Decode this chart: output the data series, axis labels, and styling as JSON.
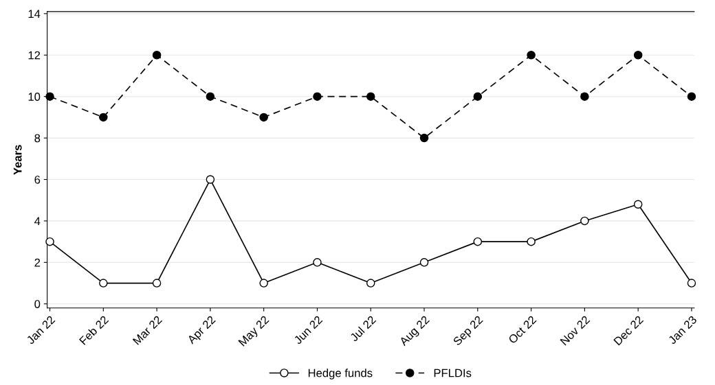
{
  "chart_data": {
    "type": "line",
    "ylabel": "Years",
    "categories": [
      "Jan 22",
      "Feb 22",
      "Mar 22",
      "Apr 22",
      "May 22",
      "Jun 22",
      "Jul 22",
      "Aug 22",
      "Sep 22",
      "Oct 22",
      "Nov 22",
      "Dec 22",
      "Jan 23"
    ],
    "series": [
      {
        "name": "Hedge funds",
        "color": "#000000",
        "marker": "circle",
        "line_style": "solid",
        "values": [
          3,
          1,
          1,
          6,
          1,
          2,
          1,
          2,
          3,
          3,
          4,
          4.8,
          1
        ]
      },
      {
        "name": "PFLDIs",
        "color": "#000000",
        "marker": "circle",
        "line_style": "dashed",
        "values": [
          10,
          9,
          12,
          10,
          9,
          10,
          10,
          8,
          10,
          12,
          10,
          12,
          10
        ]
      }
    ],
    "ylim": [
      -0.2,
      14.1
    ],
    "yticks": [
      0,
      2,
      4,
      6,
      8,
      10,
      12,
      14
    ],
    "grid": "y",
    "legend": "bottom"
  }
}
